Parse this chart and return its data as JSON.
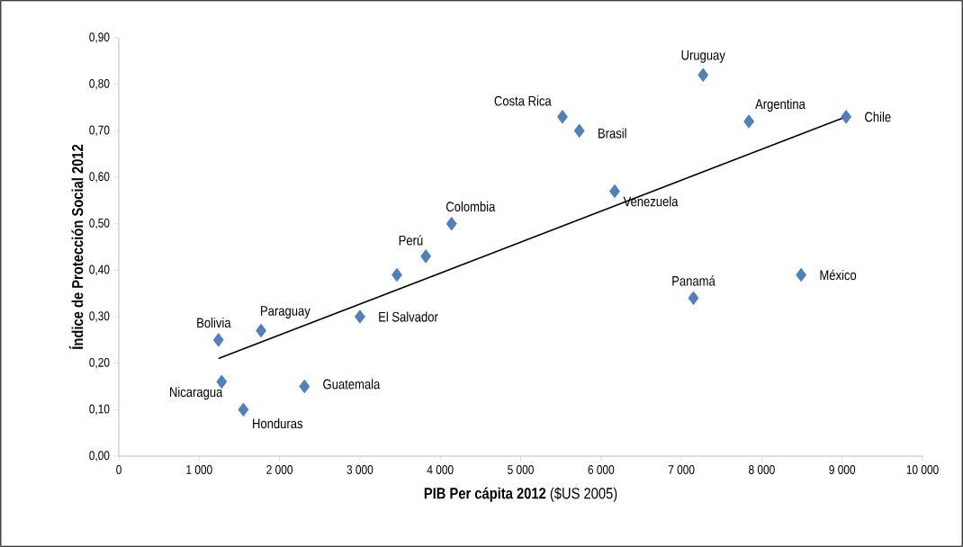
{
  "chart_data": {
    "type": "scatter",
    "xlabel": "**PIB Per cápita 2012** ($US 2005)",
    "ylabel": "Índice de Protección Social 2012",
    "xlim": [
      0,
      10000
    ],
    "ylim": [
      0,
      0.9
    ],
    "xticks": [
      0,
      {
        "value": 1000,
        "label": "1 000"
      },
      {
        "value": 2000,
        "label": "2 000"
      },
      {
        "value": 3000,
        "label": "3 000"
      },
      {
        "value": 4000,
        "label": "4 000"
      },
      {
        "value": 5000,
        "label": "5 000"
      },
      {
        "value": 6000,
        "label": "6 000"
      },
      {
        "value": 7000,
        "label": "7 000"
      },
      {
        "value": 8000,
        "label": "8 000"
      },
      {
        "value": 9000,
        "label": "9 000"
      },
      {
        "value": 10000,
        "label": "10 000"
      }
    ],
    "yticks": [
      {
        "value": 0,
        "label": "0,00"
      },
      {
        "value": 0.1,
        "label": "0,10"
      },
      {
        "value": 0.2,
        "label": "0,20"
      },
      {
        "value": 0.3,
        "label": "0,30"
      },
      {
        "value": 0.4,
        "label": "0,40"
      },
      {
        "value": 0.5,
        "label": "0,50"
      },
      {
        "value": 0.6,
        "label": "0,60"
      },
      {
        "value": 0.7,
        "label": "0,70"
      },
      {
        "value": 0.8,
        "label": "0,80"
      },
      {
        "value": 0.9,
        "label": "0,90"
      }
    ],
    "series": [
      {
        "marker": "diamond",
        "color": "#4f81bd",
        "x": [
          7270,
          5520,
          5730,
          7840,
          9050,
          6170,
          4140,
          3820,
          7150,
          8490,
          1770,
          3000,
          1240,
          2310,
          1280,
          1550,
          3460
        ],
        "values": [
          0.82,
          0.73,
          0.7,
          0.72,
          0.73,
          0.57,
          0.5,
          0.43,
          0.34,
          0.39,
          0.27,
          0.3,
          0.25,
          0.15,
          0.16,
          0.1,
          0.39
        ]
      },
      {
        "type": "line",
        "marker": "none",
        "line_style": "solid",
        "color": "#000000",
        "x": [
          1240,
          9050
        ],
        "values": [
          0.21,
          0.73
        ]
      }
    ],
    "annotations": [
      {
        "text": "Uruguay",
        "x": 7270,
        "y": 0.82
      },
      {
        "text": "Costa Rica",
        "x": 5520,
        "y": 0.73
      },
      {
        "text": "Brasil",
        "x": 5730,
        "y": 0.7
      },
      {
        "text": "Argentina",
        "x": 7840,
        "y": 0.72
      },
      {
        "text": "Chile",
        "x": 9050,
        "y": 0.73
      },
      {
        "text": "Venezuela",
        "x": 6170,
        "y": 0.57
      },
      {
        "text": "Colombia",
        "x": 4140,
        "y": 0.5
      },
      {
        "text": "Perú",
        "x": 3820,
        "y": 0.43
      },
      {
        "text": "Panamá",
        "x": 7150,
        "y": 0.34
      },
      {
        "text": "México",
        "x": 8490,
        "y": 0.39
      },
      {
        "text": "Paraguay",
        "x": 1770,
        "y": 0.27
      },
      {
        "text": "El Salvador",
        "x": 3000,
        "y": 0.3
      },
      {
        "text": "Bolivia",
        "x": 1240,
        "y": 0.25
      },
      {
        "text": "Guatemala",
        "x": 2310,
        "y": 0.15
      },
      {
        "text": "Nicaragua",
        "x": 1280,
        "y": 0.16
      },
      {
        "text": "Honduras",
        "x": 1550,
        "y": 0.1
      }
    ]
  }
}
